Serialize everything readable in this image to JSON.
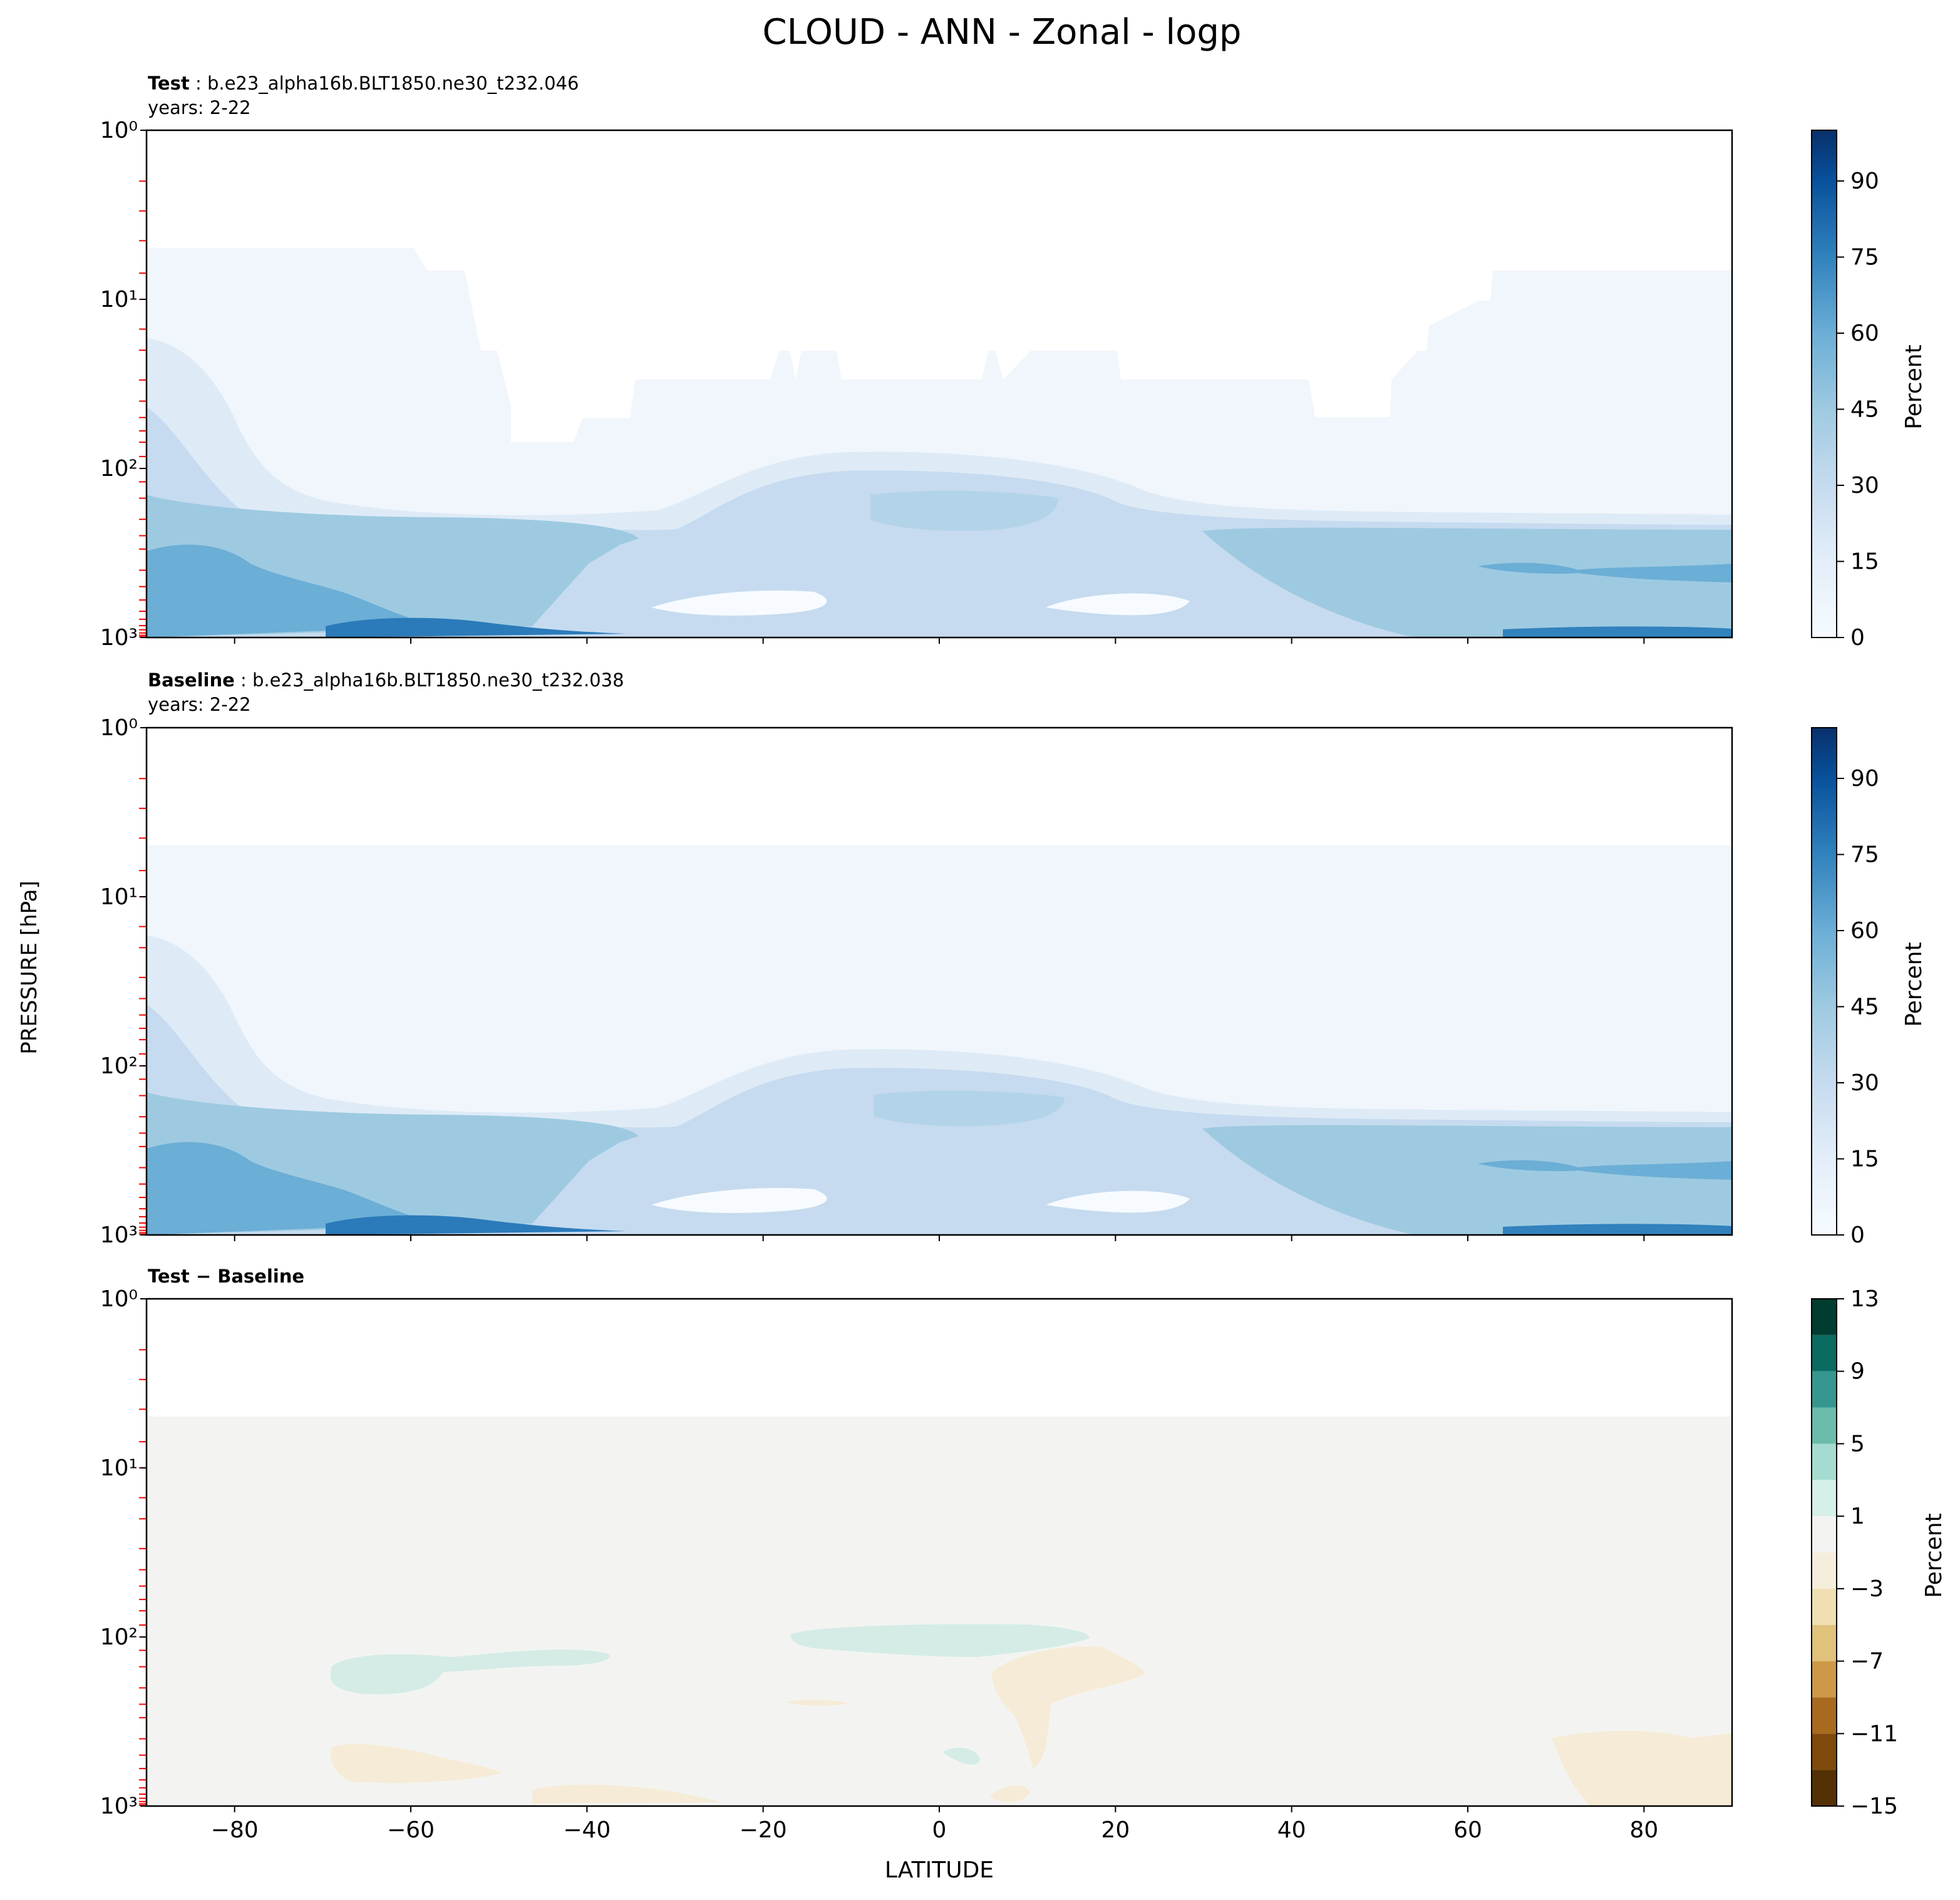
{
  "figure_title": "CLOUD - ANN - Zonal - logp",
  "shared_ylabel": "PRESSURE [hPa]",
  "shared_xlabel": "LATITUDE",
  "chart_data": [
    {
      "type": "heatmap",
      "label_bold": "Test",
      "label_rest": " : b.e23_alpha16b.BLT1850.ne30_t232.046",
      "years": "years: 2-22",
      "x_range": [
        -90,
        90
      ],
      "y_range_hpa": [
        1000,
        1
      ],
      "y_scale": "log",
      "x_ticks": [
        "−80",
        "−60",
        "−40",
        "−20",
        "0",
        "20",
        "40",
        "60",
        "80"
      ],
      "y_ticks": [
        "10⁰",
        "10¹",
        "10²",
        "10³"
      ],
      "colormap": "Blues",
      "colorbar_label": "Percent",
      "colorbar_ticks": [
        "0",
        "15",
        "30",
        "45",
        "60",
        "75",
        "90"
      ],
      "colorbar_range": [
        0,
        100
      ],
      "model_top_hpa": 5,
      "model_levels_hpa": [
        2,
        3,
        4.5,
        7,
        10,
        15,
        20,
        30,
        40,
        50,
        60,
        70,
        85,
        100,
        120,
        150,
        200,
        250,
        300,
        400,
        500,
        600,
        700,
        780,
        850,
        900,
        940,
        970,
        990
      ]
    },
    {
      "type": "heatmap",
      "label_bold": "Baseline",
      "label_rest": " : b.e23_alpha16b.BLT1850.ne30_t232.038",
      "years": "years: 2-22",
      "x_range": [
        -90,
        90
      ],
      "y_range_hpa": [
        1000,
        1
      ],
      "y_scale": "log",
      "x_ticks": [
        "−80",
        "−60",
        "−40",
        "−20",
        "0",
        "20",
        "40",
        "60",
        "80"
      ],
      "y_ticks": [
        "10⁰",
        "10¹",
        "10²",
        "10³"
      ],
      "colormap": "Blues",
      "colorbar_label": "Percent",
      "colorbar_ticks": [
        "0",
        "15",
        "30",
        "45",
        "60",
        "75",
        "90"
      ],
      "colorbar_range": [
        0,
        100
      ],
      "model_top_hpa": 5
    },
    {
      "type": "heatmap",
      "label_bold": "Test",
      "label_rest": " − Baseline",
      "x_range": [
        -90,
        90
      ],
      "y_range_hpa": [
        1000,
        1
      ],
      "y_scale": "log",
      "x_ticks": [
        "−80",
        "−60",
        "−40",
        "−20",
        "0",
        "20",
        "40",
        "60",
        "80"
      ],
      "y_ticks": [
        "10⁰",
        "10¹",
        "10²",
        "10³"
      ],
      "colormap": "BrBG",
      "colorbar_label": "Percent",
      "colorbar_ticks": [
        "13",
        "9",
        "5",
        "1",
        "−3",
        "−7",
        "−11",
        "−15"
      ],
      "colorbar_range": [
        -15,
        13
      ],
      "model_top_hpa": 5
    }
  ],
  "colors": {
    "blues": [
      "#f7fbff",
      "#e3eef9",
      "#d0e1f2",
      "#b7d4ea",
      "#94c4df",
      "#6aaed6",
      "#4a98c9",
      "#2e7ebc",
      "#1764ab",
      "#084a91",
      "#08306b"
    ],
    "diff": [
      "#543005",
      "#7f4a0b",
      "#a86a1e",
      "#cd9848",
      "#e1c27b",
      "#efdfb2",
      "#f5eedc",
      "#f3f4f2",
      "#d6efe9",
      "#a6dccf",
      "#6bbcab",
      "#35978f",
      "#0a6b60",
      "#003c30"
    ],
    "model_level_ticks": "#ff0000"
  }
}
